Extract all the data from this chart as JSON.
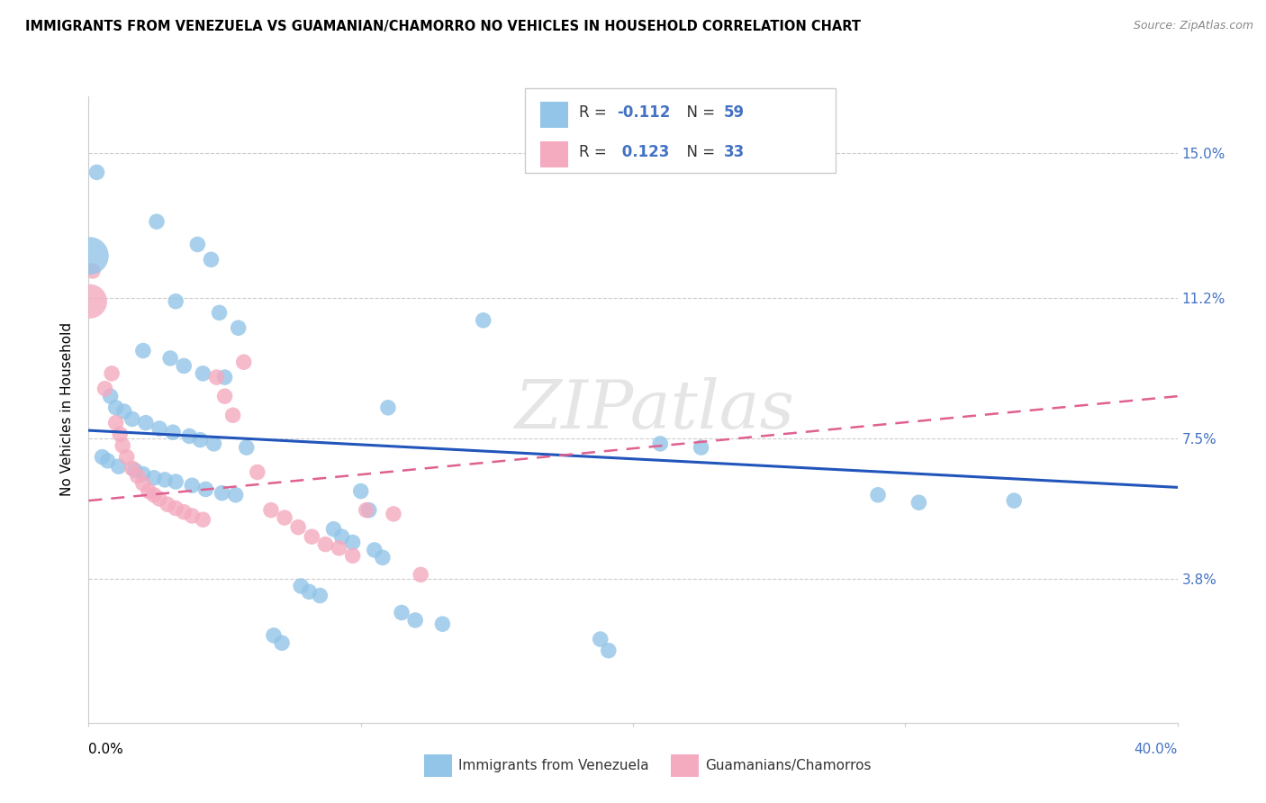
{
  "title": "IMMIGRANTS FROM VENEZUELA VS GUAMANIAN/CHAMORRO NO VEHICLES IN HOUSEHOLD CORRELATION CHART",
  "source": "Source: ZipAtlas.com",
  "ylabel": "No Vehicles in Household",
  "ytick_vals": [
    15.0,
    11.2,
    7.5,
    3.8
  ],
  "ytick_labels": [
    "15.0%",
    "11.2%",
    "7.5%",
    "3.8%"
  ],
  "xmin": 0.0,
  "xmax": 40.0,
  "ymin": 0.0,
  "ymax": 16.5,
  "legend_label1_bottom": "Immigrants from Venezuela",
  "legend_label2_bottom": "Guamanians/Chamorros",
  "blue_color": "#92C5E8",
  "pink_color": "#F4AABF",
  "trend_blue": "#2255BB",
  "trend_pink": "#E06090",
  "blue_scatter": [
    [
      0.3,
      14.5
    ],
    [
      2.5,
      13.2
    ],
    [
      4.0,
      12.6
    ],
    [
      4.5,
      12.2
    ],
    [
      3.2,
      11.1
    ],
    [
      4.8,
      10.8
    ],
    [
      5.5,
      10.4
    ],
    [
      2.0,
      9.8
    ],
    [
      3.0,
      9.6
    ],
    [
      3.5,
      9.4
    ],
    [
      4.2,
      9.2
    ],
    [
      5.0,
      9.1
    ],
    [
      0.8,
      8.6
    ],
    [
      1.0,
      8.3
    ],
    [
      1.3,
      8.2
    ],
    [
      1.6,
      8.0
    ],
    [
      2.1,
      7.9
    ],
    [
      2.6,
      7.75
    ],
    [
      3.1,
      7.65
    ],
    [
      3.7,
      7.55
    ],
    [
      4.1,
      7.45
    ],
    [
      4.6,
      7.35
    ],
    [
      5.8,
      7.25
    ],
    [
      0.5,
      7.0
    ],
    [
      0.7,
      6.9
    ],
    [
      1.1,
      6.75
    ],
    [
      1.7,
      6.65
    ],
    [
      2.0,
      6.55
    ],
    [
      2.4,
      6.45
    ],
    [
      2.8,
      6.4
    ],
    [
      3.2,
      6.35
    ],
    [
      3.8,
      6.25
    ],
    [
      4.3,
      6.15
    ],
    [
      4.9,
      6.05
    ],
    [
      5.4,
      6.0
    ],
    [
      14.5,
      10.6
    ],
    [
      21.0,
      7.35
    ],
    [
      22.5,
      7.25
    ],
    [
      29.0,
      6.0
    ],
    [
      30.5,
      5.8
    ],
    [
      11.0,
      8.3
    ],
    [
      10.0,
      6.1
    ],
    [
      10.3,
      5.6
    ],
    [
      9.0,
      5.1
    ],
    [
      9.3,
      4.9
    ],
    [
      9.7,
      4.75
    ],
    [
      10.5,
      4.55
    ],
    [
      10.8,
      4.35
    ],
    [
      7.8,
      3.6
    ],
    [
      8.1,
      3.45
    ],
    [
      8.5,
      3.35
    ],
    [
      11.5,
      2.9
    ],
    [
      12.0,
      2.7
    ],
    [
      13.0,
      2.6
    ],
    [
      6.8,
      2.3
    ],
    [
      7.1,
      2.1
    ],
    [
      18.8,
      2.2
    ],
    [
      19.1,
      1.9
    ],
    [
      34.0,
      5.85
    ]
  ],
  "pink_scatter": [
    [
      0.15,
      11.9
    ],
    [
      0.6,
      8.8
    ],
    [
      0.85,
      9.2
    ],
    [
      1.0,
      7.9
    ],
    [
      1.15,
      7.6
    ],
    [
      1.25,
      7.3
    ],
    [
      1.4,
      7.0
    ],
    [
      1.6,
      6.7
    ],
    [
      1.8,
      6.5
    ],
    [
      2.0,
      6.3
    ],
    [
      2.2,
      6.1
    ],
    [
      2.4,
      6.0
    ],
    [
      2.6,
      5.9
    ],
    [
      2.9,
      5.75
    ],
    [
      3.2,
      5.65
    ],
    [
      3.5,
      5.55
    ],
    [
      3.8,
      5.45
    ],
    [
      4.2,
      5.35
    ],
    [
      4.7,
      9.1
    ],
    [
      5.0,
      8.6
    ],
    [
      5.3,
      8.1
    ],
    [
      5.7,
      9.5
    ],
    [
      6.2,
      6.6
    ],
    [
      6.7,
      5.6
    ],
    [
      7.2,
      5.4
    ],
    [
      7.7,
      5.15
    ],
    [
      8.2,
      4.9
    ],
    [
      8.7,
      4.7
    ],
    [
      9.2,
      4.6
    ],
    [
      9.7,
      4.4
    ],
    [
      10.2,
      5.6
    ],
    [
      11.2,
      5.5
    ],
    [
      12.2,
      3.9
    ]
  ],
  "blue_trend_x": [
    0.0,
    40.0
  ],
  "blue_trend_y": [
    7.7,
    6.2
  ],
  "pink_trend_x": [
    0.0,
    40.0
  ],
  "pink_trend_y": [
    5.85,
    8.6
  ],
  "big_blue": [
    0.05,
    12.3
  ],
  "big_pink": [
    0.05,
    11.1
  ],
  "watermark": "ZIPatlas"
}
